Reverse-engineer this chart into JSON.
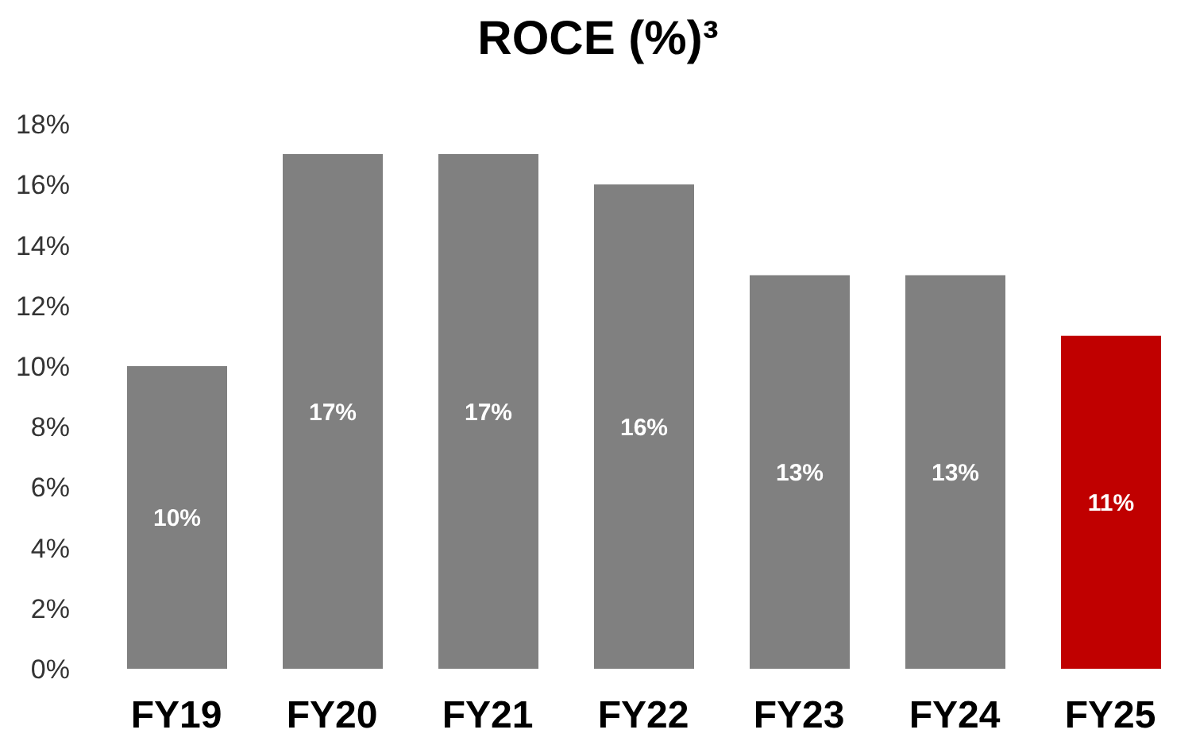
{
  "chart_data": {
    "type": "bar",
    "title": "ROCE (%)³",
    "categories": [
      "FY19",
      "FY20",
      "FY21",
      "FY22",
      "FY23",
      "FY24",
      "FY25"
    ],
    "values": [
      10,
      17,
      17,
      16,
      13,
      13,
      11
    ],
    "colors": [
      "#808080",
      "#808080",
      "#808080",
      "#808080",
      "#808080",
      "#808080",
      "#c00000"
    ],
    "value_labels": [
      "10%",
      "17%",
      "17%",
      "16%",
      "13%",
      "13%",
      "11%"
    ],
    "ylim": [
      0,
      18
    ],
    "yticks": [
      {
        "value": 0,
        "label": "0%"
      },
      {
        "value": 2,
        "label": "2%"
      },
      {
        "value": 4,
        "label": "4%"
      },
      {
        "value": 6,
        "label": "6%"
      },
      {
        "value": 8,
        "label": "8%"
      },
      {
        "value": 10,
        "label": "10%"
      },
      {
        "value": 12,
        "label": "12%"
      },
      {
        "value": 14,
        "label": "14%"
      },
      {
        "value": 16,
        "label": "16%"
      },
      {
        "value": 18,
        "label": "18%"
      }
    ],
    "grid": false,
    "legend": false
  }
}
